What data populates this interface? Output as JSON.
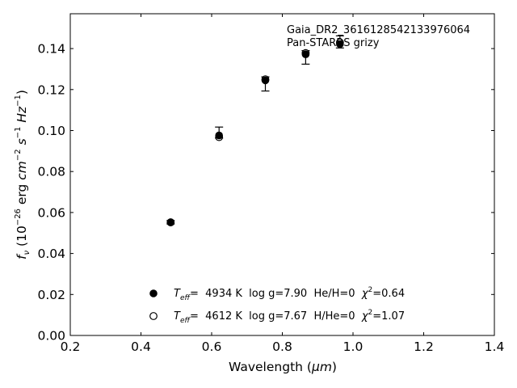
{
  "chart_data": {
    "type": "scatter",
    "xlabel_text": "Wavelength (",
    "xlabel_unit": "μm",
    "xlabel_close": ")",
    "ylabel_fnu": "f",
    "ylabel_fnu_sub": "ν",
    "ylabel_paren_open": " (10",
    "ylabel_exp_26": "−26",
    "ylabel_erg": " erg ",
    "ylabel_cm": "cm",
    "ylabel_exp_cm": "−2",
    "ylabel_s": "s",
    "ylabel_exp_s": "−1",
    "ylabel_hz": "Hz",
    "ylabel_exp_hz": "−1",
    "ylabel_close": ")",
    "xlim": [
      0.2,
      1.4
    ],
    "ylim": [
      0.0,
      0.157
    ],
    "xticks": [
      "0.2",
      "0.4",
      "0.6",
      "0.8",
      "1.0",
      "1.2",
      "1.4"
    ],
    "yticks": [
      "0.00",
      "0.02",
      "0.04",
      "0.06",
      "0.08",
      "0.10",
      "0.12",
      "0.14"
    ],
    "annotation_line1": "Gaia_DR2_3616128542133976064",
    "annotation_line2": "Pan-STARRS grizy",
    "grid": false,
    "series": [
      {
        "marker": "filled",
        "x": [
          0.484,
          0.621,
          0.752,
          0.866,
          0.963
        ],
        "y": [
          0.0552,
          0.0976,
          0.1245,
          0.1372,
          0.1422
        ]
      },
      {
        "marker": "open",
        "x": [
          0.484,
          0.621,
          0.752,
          0.866,
          0.963
        ],
        "y": [
          0.0552,
          0.0968,
          0.125,
          0.1378,
          0.143
        ]
      }
    ],
    "errors": {
      "x": [
        0.484,
        0.621,
        0.752,
        0.866,
        0.963
      ],
      "y": [
        0.0552,
        0.0976,
        0.1245,
        0.1372,
        0.1422
      ],
      "low": [
        0.0544,
        0.0963,
        0.1193,
        0.1324,
        0.1403
      ],
      "high": [
        0.0561,
        0.1017,
        0.1262,
        0.139,
        0.1462
      ]
    },
    "legend": [
      {
        "marker": "filled",
        "teff_t": "T",
        "teff_sub": "eff",
        "text": "=  4934 K  log g=7.90  He/H=0  ",
        "chi": "χ",
        "chi_sup": "2",
        "chi_val": "=0.64"
      },
      {
        "marker": "open",
        "teff_t": "T",
        "teff_sub": "eff",
        "text": "=  4612 K  log g=7.67  H/He=0  ",
        "chi": "χ",
        "chi_sup": "2",
        "chi_val": "=1.07"
      }
    ]
  }
}
